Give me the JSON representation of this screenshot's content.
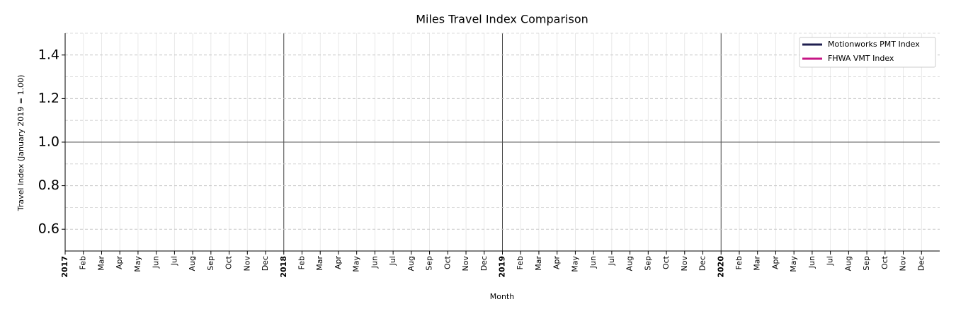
{
  "chart_data": {
    "type": "line",
    "title": "Miles Travel Index Comparison",
    "x_label": "Month",
    "y_label": "Travel Index (January 2019 = 1.00)",
    "categories": [
      "2017",
      "Feb",
      "Mar",
      "Apr",
      "May",
      "Jun",
      "Jul",
      "Aug",
      "Sep",
      "Oct",
      "Nov",
      "Dec",
      "2018",
      "Feb",
      "Mar",
      "Apr",
      "May",
      "Jun",
      "Jul",
      "Aug",
      "Sep",
      "Oct",
      "Nov",
      "Dec",
      "2019",
      "Feb",
      "Mar",
      "Apr",
      "May",
      "Jun",
      "Jul",
      "Aug",
      "Sep",
      "Oct",
      "Nov",
      "Dec",
      "2020",
      "Feb",
      "Mar",
      "Apr",
      "May",
      "Jun",
      "Jul",
      "Aug",
      "Sep",
      "Oct",
      "Nov",
      "Dec"
    ],
    "series": [
      {
        "name": "Motionworks PMT Index",
        "color": "#1f1f4f",
        "values": [
          null,
          null,
          null,
          null,
          null,
          null,
          null,
          null,
          null,
          null,
          null,
          null,
          null,
          null,
          null,
          null,
          null,
          null,
          null,
          null,
          null,
          null,
          null,
          null,
          null,
          null,
          null,
          null,
          null,
          null,
          null,
          null,
          null,
          null,
          null,
          null,
          null,
          null,
          null,
          null,
          null,
          null,
          null,
          null,
          null,
          null,
          null,
          null
        ]
      },
      {
        "name": "FHWA VMT Index",
        "color": "#c71585",
        "values": [
          null,
          null,
          null,
          null,
          null,
          null,
          null,
          null,
          null,
          null,
          null,
          null,
          null,
          null,
          null,
          null,
          null,
          null,
          null,
          null,
          null,
          null,
          null,
          null,
          null,
          null,
          null,
          null,
          null,
          null,
          null,
          null,
          null,
          null,
          null,
          null,
          null,
          null,
          null,
          null,
          null,
          null,
          null,
          null,
          null,
          null,
          null,
          null
        ]
      }
    ],
    "ylim": [
      0.5,
      1.5
    ],
    "yticks": [
      0.6,
      0.8,
      {
        "value": 1,
        "label": "1.0"
      },
      1.2,
      1.4
    ],
    "y_minor_ticks": [
      0.7,
      0.9,
      1.1,
      1.3,
      1.5
    ],
    "reference_line": 1,
    "grid": true,
    "legend": "upper right"
  }
}
